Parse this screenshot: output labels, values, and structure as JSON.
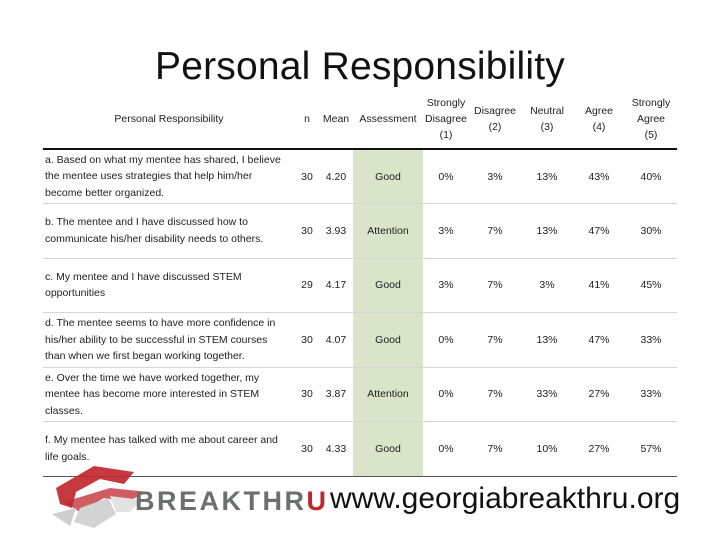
{
  "title": "Personal Responsibility",
  "table": {
    "headers": {
      "question": "Personal Responsibility",
      "n": "n",
      "mean": "Mean",
      "assessment": "Assessment",
      "strongly_disagree": [
        "Strongly",
        "Disagree",
        "(1)"
      ],
      "disagree": [
        "Disagree",
        "(2)"
      ],
      "neutral": [
        "Neutral",
        "(3)"
      ],
      "agree": [
        "Agree",
        "(4)"
      ],
      "strongly_agree": [
        "Strongly",
        "Agree",
        "(5)"
      ]
    },
    "rows": [
      {
        "question": "a. Based on what my mentee has shared, I believe the mentee uses strategies that help him/her become better organized.",
        "n": "30",
        "mean": "4.20",
        "assessment": "Good",
        "sd": "0%",
        "d": "3%",
        "neu": "13%",
        "a": "43%",
        "sa": "40%"
      },
      {
        "question": "b. The mentee and I have discussed how to communicate his/her disability needs to others.",
        "n": "30",
        "mean": "3.93",
        "assessment": "Attention",
        "sd": "3%",
        "d": "7%",
        "neu": "13%",
        "a": "47%",
        "sa": "30%"
      },
      {
        "question": "c. My mentee and I have discussed STEM opportunities",
        "n": "29",
        "mean": "4.17",
        "assessment": "Good",
        "sd": "3%",
        "d": "7%",
        "neu": "3%",
        "a": "41%",
        "sa": "45%"
      },
      {
        "question": "d. The mentee seems to have more confidence in his/her ability to be successful in STEM courses than when we first began working together.",
        "n": "30",
        "mean": "4.07",
        "assessment": "Good",
        "sd": "0%",
        "d": "7%",
        "neu": "13%",
        "a": "47%",
        "sa": "33%"
      },
      {
        "question": "e. Over the time we have worked together, my mentee has become more interested in STEM classes.",
        "n": "30",
        "mean": "3.87",
        "assessment": "Attention",
        "sd": "0%",
        "d": "7%",
        "neu": "33%",
        "a": "27%",
        "sa": "33%"
      },
      {
        "question": "f. My mentee has talked with me about career and life goals.",
        "n": "30",
        "mean": "4.33",
        "assessment": "Good",
        "sd": "0%",
        "d": "7%",
        "neu": "10%",
        "a": "27%",
        "sa": "57%"
      }
    ]
  },
  "logo": {
    "word_main": "BREAKTHR",
    "word_accent": "U",
    "icon": "breakthru-arrow-icon"
  },
  "footer_url": "www.georgiabreakthru.org",
  "colors": {
    "assessment_bg": "#d9e4c9",
    "logo_red": "#c0272d",
    "logo_gray": "#6d6e70"
  }
}
